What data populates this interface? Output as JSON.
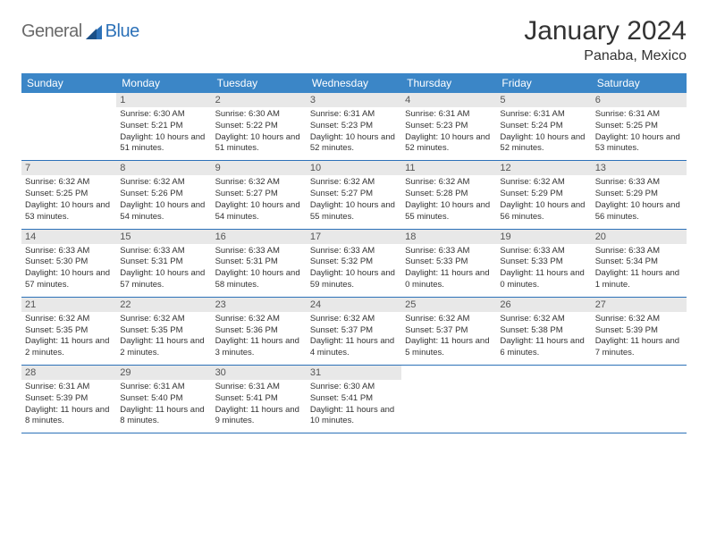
{
  "logo": {
    "word1": "General",
    "word2": "Blue"
  },
  "header": {
    "month_title": "January 2024",
    "location": "Panaba, Mexico"
  },
  "colors": {
    "header_bg": "#3b86c7",
    "header_text": "#ffffff",
    "daynum_bg": "#e8e8e8",
    "rule": "#2c71b8",
    "logo_grey": "#6a6a6a",
    "logo_blue": "#2c71b8"
  },
  "weekdays": [
    "Sunday",
    "Monday",
    "Tuesday",
    "Wednesday",
    "Thursday",
    "Friday",
    "Saturday"
  ],
  "weeks": [
    [
      {
        "n": "",
        "sr": "",
        "ss": "",
        "dl": ""
      },
      {
        "n": "1",
        "sr": "Sunrise: 6:30 AM",
        "ss": "Sunset: 5:21 PM",
        "dl": "Daylight: 10 hours and 51 minutes."
      },
      {
        "n": "2",
        "sr": "Sunrise: 6:30 AM",
        "ss": "Sunset: 5:22 PM",
        "dl": "Daylight: 10 hours and 51 minutes."
      },
      {
        "n": "3",
        "sr": "Sunrise: 6:31 AM",
        "ss": "Sunset: 5:23 PM",
        "dl": "Daylight: 10 hours and 52 minutes."
      },
      {
        "n": "4",
        "sr": "Sunrise: 6:31 AM",
        "ss": "Sunset: 5:23 PM",
        "dl": "Daylight: 10 hours and 52 minutes."
      },
      {
        "n": "5",
        "sr": "Sunrise: 6:31 AM",
        "ss": "Sunset: 5:24 PM",
        "dl": "Daylight: 10 hours and 52 minutes."
      },
      {
        "n": "6",
        "sr": "Sunrise: 6:31 AM",
        "ss": "Sunset: 5:25 PM",
        "dl": "Daylight: 10 hours and 53 minutes."
      }
    ],
    [
      {
        "n": "7",
        "sr": "Sunrise: 6:32 AM",
        "ss": "Sunset: 5:25 PM",
        "dl": "Daylight: 10 hours and 53 minutes."
      },
      {
        "n": "8",
        "sr": "Sunrise: 6:32 AM",
        "ss": "Sunset: 5:26 PM",
        "dl": "Daylight: 10 hours and 54 minutes."
      },
      {
        "n": "9",
        "sr": "Sunrise: 6:32 AM",
        "ss": "Sunset: 5:27 PM",
        "dl": "Daylight: 10 hours and 54 minutes."
      },
      {
        "n": "10",
        "sr": "Sunrise: 6:32 AM",
        "ss": "Sunset: 5:27 PM",
        "dl": "Daylight: 10 hours and 55 minutes."
      },
      {
        "n": "11",
        "sr": "Sunrise: 6:32 AM",
        "ss": "Sunset: 5:28 PM",
        "dl": "Daylight: 10 hours and 55 minutes."
      },
      {
        "n": "12",
        "sr": "Sunrise: 6:32 AM",
        "ss": "Sunset: 5:29 PM",
        "dl": "Daylight: 10 hours and 56 minutes."
      },
      {
        "n": "13",
        "sr": "Sunrise: 6:33 AM",
        "ss": "Sunset: 5:29 PM",
        "dl": "Daylight: 10 hours and 56 minutes."
      }
    ],
    [
      {
        "n": "14",
        "sr": "Sunrise: 6:33 AM",
        "ss": "Sunset: 5:30 PM",
        "dl": "Daylight: 10 hours and 57 minutes."
      },
      {
        "n": "15",
        "sr": "Sunrise: 6:33 AM",
        "ss": "Sunset: 5:31 PM",
        "dl": "Daylight: 10 hours and 57 minutes."
      },
      {
        "n": "16",
        "sr": "Sunrise: 6:33 AM",
        "ss": "Sunset: 5:31 PM",
        "dl": "Daylight: 10 hours and 58 minutes."
      },
      {
        "n": "17",
        "sr": "Sunrise: 6:33 AM",
        "ss": "Sunset: 5:32 PM",
        "dl": "Daylight: 10 hours and 59 minutes."
      },
      {
        "n": "18",
        "sr": "Sunrise: 6:33 AM",
        "ss": "Sunset: 5:33 PM",
        "dl": "Daylight: 11 hours and 0 minutes."
      },
      {
        "n": "19",
        "sr": "Sunrise: 6:33 AM",
        "ss": "Sunset: 5:33 PM",
        "dl": "Daylight: 11 hours and 0 minutes."
      },
      {
        "n": "20",
        "sr": "Sunrise: 6:33 AM",
        "ss": "Sunset: 5:34 PM",
        "dl": "Daylight: 11 hours and 1 minute."
      }
    ],
    [
      {
        "n": "21",
        "sr": "Sunrise: 6:32 AM",
        "ss": "Sunset: 5:35 PM",
        "dl": "Daylight: 11 hours and 2 minutes."
      },
      {
        "n": "22",
        "sr": "Sunrise: 6:32 AM",
        "ss": "Sunset: 5:35 PM",
        "dl": "Daylight: 11 hours and 2 minutes."
      },
      {
        "n": "23",
        "sr": "Sunrise: 6:32 AM",
        "ss": "Sunset: 5:36 PM",
        "dl": "Daylight: 11 hours and 3 minutes."
      },
      {
        "n": "24",
        "sr": "Sunrise: 6:32 AM",
        "ss": "Sunset: 5:37 PM",
        "dl": "Daylight: 11 hours and 4 minutes."
      },
      {
        "n": "25",
        "sr": "Sunrise: 6:32 AM",
        "ss": "Sunset: 5:37 PM",
        "dl": "Daylight: 11 hours and 5 minutes."
      },
      {
        "n": "26",
        "sr": "Sunrise: 6:32 AM",
        "ss": "Sunset: 5:38 PM",
        "dl": "Daylight: 11 hours and 6 minutes."
      },
      {
        "n": "27",
        "sr": "Sunrise: 6:32 AM",
        "ss": "Sunset: 5:39 PM",
        "dl": "Daylight: 11 hours and 7 minutes."
      }
    ],
    [
      {
        "n": "28",
        "sr": "Sunrise: 6:31 AM",
        "ss": "Sunset: 5:39 PM",
        "dl": "Daylight: 11 hours and 8 minutes."
      },
      {
        "n": "29",
        "sr": "Sunrise: 6:31 AM",
        "ss": "Sunset: 5:40 PM",
        "dl": "Daylight: 11 hours and 8 minutes."
      },
      {
        "n": "30",
        "sr": "Sunrise: 6:31 AM",
        "ss": "Sunset: 5:41 PM",
        "dl": "Daylight: 11 hours and 9 minutes."
      },
      {
        "n": "31",
        "sr": "Sunrise: 6:30 AM",
        "ss": "Sunset: 5:41 PM",
        "dl": "Daylight: 11 hours and 10 minutes."
      },
      {
        "n": "",
        "sr": "",
        "ss": "",
        "dl": ""
      },
      {
        "n": "",
        "sr": "",
        "ss": "",
        "dl": ""
      },
      {
        "n": "",
        "sr": "",
        "ss": "",
        "dl": ""
      }
    ]
  ]
}
